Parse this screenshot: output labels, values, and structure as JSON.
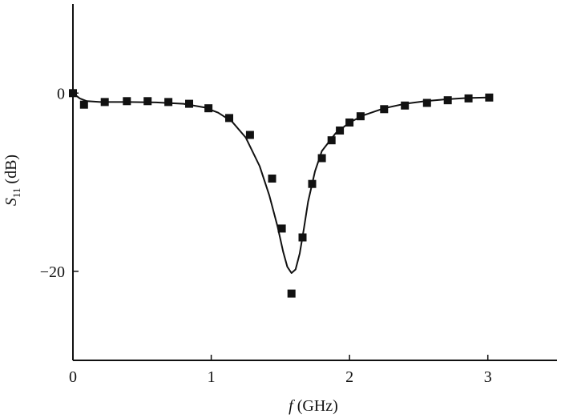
{
  "chart_data": {
    "type": "line",
    "xlabel_symbol": "f",
    "xlabel_unit": " (GHz)",
    "ylabel_symbol": "S",
    "ylabel_subscript": "11",
    "ylabel_unit": " (dB)",
    "xlim": [
      0,
      3.5
    ],
    "ylim": [
      -30,
      10
    ],
    "x_ticks": [
      0,
      1,
      2,
      3
    ],
    "x_tick_labels": [
      "0",
      "1",
      "2",
      "3"
    ],
    "y_ticks": [
      0,
      -20
    ],
    "y_tick_labels": [
      "0",
      "−20"
    ],
    "grid": false,
    "legend": "none",
    "series": [
      {
        "style": "line",
        "color": "#111111",
        "x": [
          0.0,
          0.05,
          0.1,
          0.2,
          0.4,
          0.6,
          0.8,
          0.95,
          1.05,
          1.15,
          1.25,
          1.35,
          1.42,
          1.48,
          1.52,
          1.55,
          1.58,
          1.61,
          1.64,
          1.67,
          1.7,
          1.75,
          1.8,
          1.9,
          2.0,
          2.1,
          2.25,
          2.4,
          2.55,
          2.7,
          2.85,
          3.0
        ],
        "y": [
          0.0,
          -0.6,
          -0.9,
          -1.0,
          -1.0,
          -1.05,
          -1.2,
          -1.6,
          -2.2,
          -3.2,
          -5.0,
          -8.2,
          -11.5,
          -15.0,
          -17.8,
          -19.5,
          -20.2,
          -19.8,
          -18.0,
          -15.2,
          -12.2,
          -8.8,
          -6.5,
          -4.5,
          -3.3,
          -2.5,
          -1.7,
          -1.2,
          -0.9,
          -0.7,
          -0.55,
          -0.5
        ]
      },
      {
        "style": "markers",
        "marker": "square",
        "color": "#111111",
        "x": [
          0.0,
          0.08,
          0.23,
          0.39,
          0.54,
          0.69,
          0.84,
          0.98,
          1.13,
          1.28,
          1.44,
          1.51,
          1.58,
          1.66,
          1.73,
          1.8,
          1.87,
          1.93,
          2.0,
          2.08,
          2.25,
          2.4,
          2.56,
          2.71,
          2.86,
          3.01
        ],
        "y": [
          0.0,
          -1.3,
          -1.0,
          -0.9,
          -0.9,
          -1.0,
          -1.2,
          -1.7,
          -2.8,
          -4.7,
          -9.6,
          -15.2,
          -22.5,
          -16.2,
          -10.2,
          -7.3,
          -5.3,
          -4.2,
          -3.3,
          -2.6,
          -1.8,
          -1.4,
          -1.1,
          -0.8,
          -0.6,
          -0.5
        ]
      }
    ]
  }
}
